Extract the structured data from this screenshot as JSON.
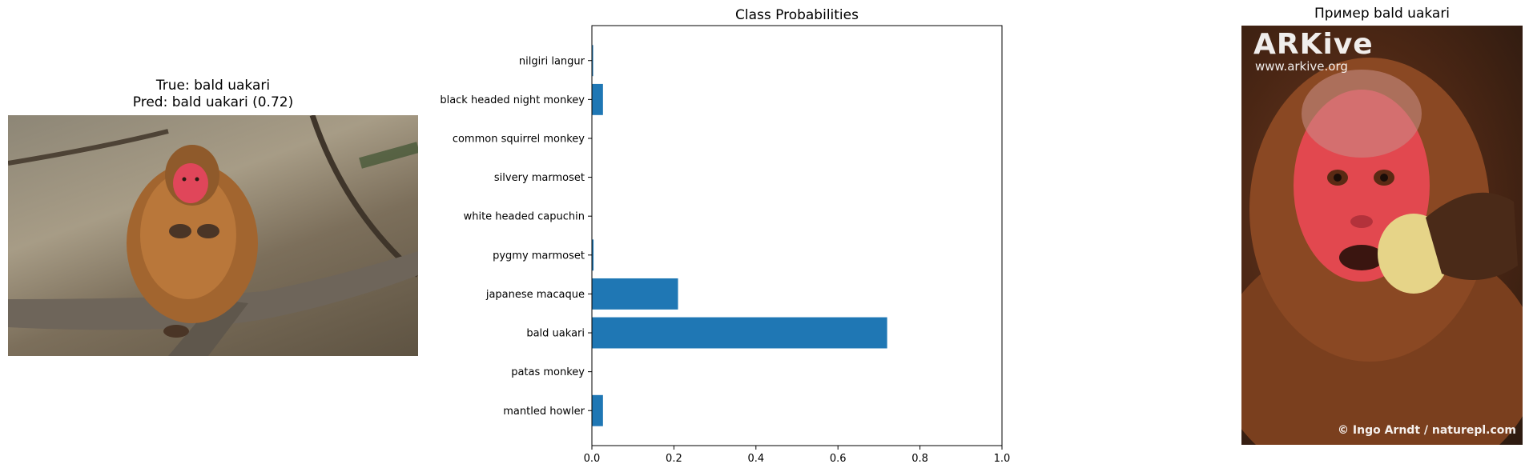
{
  "left_panel": {
    "title_line1": "True: bald uakari",
    "title_line2": "Pred: bald uakari (0.72)"
  },
  "right_panel": {
    "title": "Пример bald uakari",
    "watermark_brand": "ARKive",
    "watermark_url": "www.arkive.org",
    "credit": "© Ingo Arndt / naturepl.com"
  },
  "chart_data": {
    "type": "bar",
    "orientation": "horizontal",
    "title": "Class Probabilities",
    "categories": [
      "mantled howler",
      "patas monkey",
      "bald uakari",
      "japanese macaque",
      "pygmy marmoset",
      "white headed capuchin",
      "silvery marmoset",
      "common squirrel monkey",
      "black headed night monkey",
      "nilgiri langur"
    ],
    "values": [
      0.027,
      0.0,
      0.72,
      0.21,
      0.004,
      0.0,
      0.0,
      0.0,
      0.027,
      0.003
    ],
    "xlim": [
      0,
      1
    ],
    "xticks": [
      "0.0",
      "0.2",
      "0.4",
      "0.6",
      "0.8",
      "1.0"
    ],
    "bar_color": "#1f77b4",
    "grid": false
  }
}
